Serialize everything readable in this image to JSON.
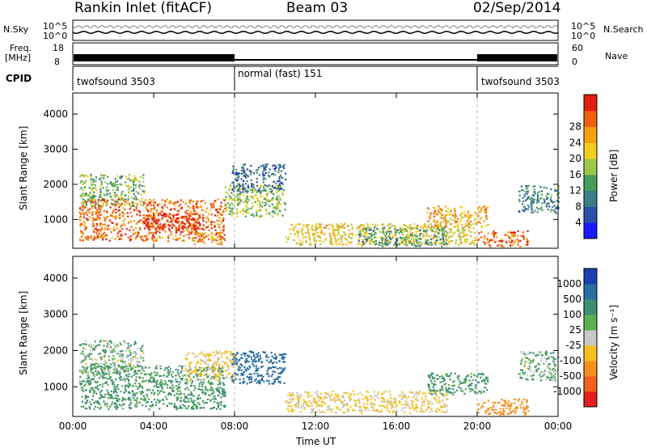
{
  "header": {
    "station": "Rankin Inlet (fitACF)",
    "beam": "Beam 03",
    "date": "02/Sep/2014"
  },
  "left_labels": {
    "nsky": "N.Sky",
    "freq_top": "Freq.",
    "freq_unit": "[MHz]",
    "cpid": "CPID"
  },
  "right_labels": {
    "nsearch": "N.Search",
    "nave": "Nave"
  },
  "scales": {
    "noise_top": "10^5",
    "noise_bot": "10^0",
    "freq_top": "18",
    "freq_bot": "8",
    "nave_top": "60",
    "nave_bot": "0"
  },
  "cpid_segments": [
    {
      "label": "twofsound 3503",
      "start": 0,
      "end": 8
    },
    {
      "label": "normal (fast) 151",
      "start": 8,
      "end": 20
    },
    {
      "label": "twofsound 3503",
      "start": 20,
      "end": 24
    }
  ],
  "chart_data": [
    {
      "type": "heatmap",
      "ylabel": "Slant Range [km]",
      "xlabel": "",
      "x_ticks": [
        "00:00",
        "04:00",
        "08:00",
        "12:00",
        "16:00",
        "20:00",
        "00:00"
      ],
      "y_ticks": [
        1000,
        2000,
        3000,
        4000
      ],
      "ylim": [
        180,
        4600
      ],
      "xlim": [
        0,
        24
      ],
      "colorbar": {
        "label": "Power [dB]",
        "ticks": [
          "4",
          "8",
          "12",
          "16",
          "20",
          "24",
          "28"
        ],
        "colors": [
          "#1a1aff",
          "#2a4fa8",
          "#3d7d8a",
          "#4a9c5a",
          "#9cc84a",
          "#f0d020",
          "#f5a010",
          "#f06010",
          "#e02010"
        ]
      },
      "clusters": [
        {
          "t0": 0.3,
          "t1": 7.5,
          "r0": 400,
          "r1": 1600,
          "level": 24
        },
        {
          "t0": 3.5,
          "t1": 6.5,
          "r0": 700,
          "r1": 1200,
          "level": 28
        },
        {
          "t0": 0.3,
          "t1": 3.5,
          "r0": 1400,
          "r1": 2300,
          "level": 12
        },
        {
          "t0": 6.0,
          "t1": 7.5,
          "r0": 300,
          "r1": 650,
          "level": 22
        },
        {
          "t0": 7.5,
          "t1": 10.5,
          "r0": 1100,
          "r1": 2000,
          "level": 14
        },
        {
          "t0": 7.8,
          "t1": 10.5,
          "r0": 1800,
          "r1": 2600,
          "level": 6
        },
        {
          "t0": 10.5,
          "t1": 20.0,
          "r0": 300,
          "r1": 900,
          "level": 18
        },
        {
          "t0": 14.0,
          "t1": 18.5,
          "r0": 250,
          "r1": 800,
          "level": 10
        },
        {
          "t0": 17.5,
          "t1": 20.5,
          "r0": 800,
          "r1": 1400,
          "level": 20
        },
        {
          "t0": 20.0,
          "t1": 22.5,
          "r0": 250,
          "r1": 700,
          "level": 24
        },
        {
          "t0": 22.0,
          "t1": 24.0,
          "r0": 1200,
          "r1": 2000,
          "level": 8
        }
      ]
    },
    {
      "type": "heatmap",
      "ylabel": "Slant Range [km]",
      "xlabel": "Time UT",
      "x_ticks": [
        "00:00",
        "04:00",
        "08:00",
        "12:00",
        "16:00",
        "20:00",
        "00:00"
      ],
      "y_ticks": [
        1000,
        2000,
        3000,
        4000
      ],
      "ylim": [
        180,
        4600
      ],
      "xlim": [
        0,
        24
      ],
      "colorbar": {
        "label": "Velocity [m s⁻¹]",
        "ticks": [
          "1000",
          "500",
          "100",
          "25",
          "-25",
          "-100",
          "-500",
          "-1000"
        ],
        "colors": [
          "#1a40b0",
          "#2a6fa0",
          "#3f8f70",
          "#5cb050",
          "#c8c8c8",
          "#f5c020",
          "#f59020",
          "#f06020",
          "#e02020"
        ]
      },
      "clusters": [
        {
          "t0": 0.3,
          "t1": 7.5,
          "r0": 400,
          "r1": 1600,
          "level": 100
        },
        {
          "t0": 0.3,
          "t1": 3.5,
          "r0": 1400,
          "r1": 2300,
          "level": 25
        },
        {
          "t0": 5.5,
          "t1": 8.0,
          "r0": 1200,
          "r1": 2000,
          "level": -100
        },
        {
          "t0": 7.8,
          "t1": 10.5,
          "r0": 1100,
          "r1": 2000,
          "level": 500
        },
        {
          "t0": 10.5,
          "t1": 18.5,
          "r0": 300,
          "r1": 900,
          "level": -100
        },
        {
          "t0": 17.5,
          "t1": 20.5,
          "r0": 800,
          "r1": 1400,
          "level": 100
        },
        {
          "t0": 20.0,
          "t1": 22.5,
          "r0": 250,
          "r1": 700,
          "level": -500
        },
        {
          "t0": 22.0,
          "t1": 24.0,
          "r0": 1200,
          "r1": 2000,
          "level": 25
        }
      ]
    }
  ]
}
